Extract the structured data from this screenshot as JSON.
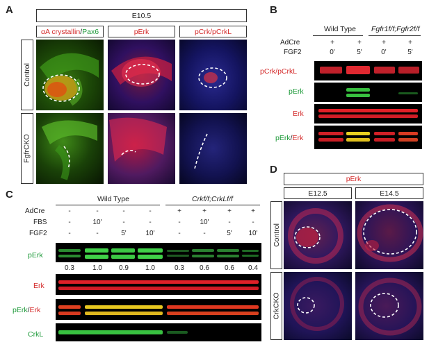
{
  "panel_a": {
    "label": "A",
    "stage": "E10.5",
    "col_alpha": "αA crystallin",
    "col_sep": "/",
    "col_pax6": "Pax6",
    "col_perk": "pErk",
    "col_pcrk": "pCrk/pCrkL",
    "row_control": "Control",
    "row_ko": "FgfrCKO"
  },
  "panel_b": {
    "label": "B",
    "genotype_wt": "Wild Type",
    "genotype_mut": "Fgfr1f/f;Fgfr2f/f",
    "adcre_label": "AdCre",
    "fgf2_label": "FGF2",
    "adcre": [
      "+",
      "+",
      "+",
      "+"
    ],
    "fgf2": [
      "0'",
      "5'",
      "0'",
      "5'"
    ],
    "blot_pcrk": "pCrk/pCrkL",
    "blot_perk": "pErk",
    "blot_erk": "Erk",
    "blot_merge_a": "pErk",
    "blot_merge_sep": "/",
    "blot_merge_b": "Erk"
  },
  "panel_c": {
    "label": "C",
    "genotype_wt": "Wild Type",
    "genotype_mut": "Crkf/f;CrkLf/f",
    "adcre_label": "AdCre",
    "fbs_label": "FBS",
    "fgf2_label": "FGF2",
    "adcre": [
      "-",
      "-",
      "-",
      "-",
      "+",
      "+",
      "+",
      "+"
    ],
    "fbs": [
      "-",
      "10'",
      "-",
      "-",
      "-",
      "10'",
      "-",
      "-"
    ],
    "fgf2": [
      "-",
      "-",
      "5'",
      "10'",
      "-",
      "-",
      "5'",
      "10'"
    ],
    "quant": [
      "0.3",
      "1.0",
      "0.9",
      "1.0",
      "0.3",
      "0.6",
      "0.6",
      "0.4"
    ],
    "blot_perk": "pErk",
    "blot_erk": "Erk",
    "blot_merge_a": "pErk",
    "blot_merge_sep": "/",
    "blot_merge_b": "Erk",
    "blot_crkl": "CrkL"
  },
  "panel_d": {
    "label": "D",
    "marker": "pErk",
    "stage_1": "E12.5",
    "stage_2": "E14.5",
    "row_control": "Control",
    "row_ko": "CrkCKO"
  }
}
